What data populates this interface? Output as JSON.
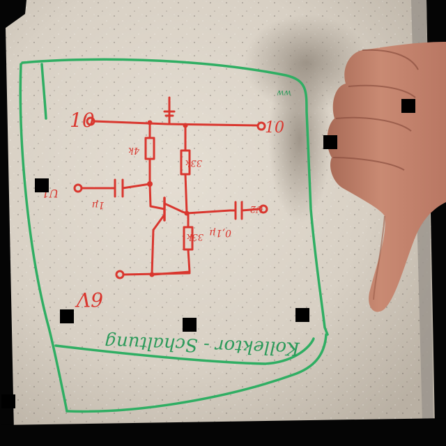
{
  "photo": {
    "subject": "Hand-drawn transistor amplifier schematic on a whiteboard",
    "ink_colors": {
      "schematic": "#d9362e",
      "frame": "#2fae63"
    },
    "hand_gesture": "thumbs-down-icon"
  },
  "schematic": {
    "input_left_label": "10",
    "input_right_label": "10",
    "signal_in_label": "U1",
    "signal_out_label": "U2",
    "r_top_label": "4k",
    "r_top_right_label": "33k",
    "r_bottom_label": "33k",
    "c_in_label": "1µ",
    "c_out_label": "0,1µ",
    "ground_label": "6V"
  },
  "caption": {
    "title": "Kollektor - Schaltung",
    "corner_note": "ww"
  }
}
